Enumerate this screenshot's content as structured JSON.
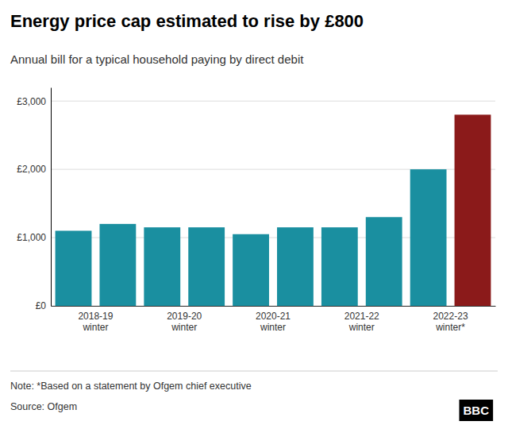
{
  "chart_data": {
    "type": "bar",
    "title": "Energy price cap estimated to rise by £800",
    "subtitle": "Annual bill for a typical household paying by direct debit",
    "note": "Note: *Based on a statement by Ofgem chief executive",
    "source": "Source: Ofgem",
    "logo": "BBC",
    "categories": [
      "2018-19\nwinter",
      null,
      "2019-20\nwinter",
      null,
      "2020-21\nwinter",
      null,
      "2021-22\nwinter",
      null,
      "2022-23\nwinter*",
      null
    ],
    "values": [
      1100,
      1200,
      1150,
      1150,
      1050,
      1150,
      1150,
      1300,
      2000,
      2800
    ],
    "colors": [
      "#1a8fa0",
      "#1a8fa0",
      "#1a8fa0",
      "#1a8fa0",
      "#1a8fa0",
      "#1a8fa0",
      "#1a8fa0",
      "#1a8fa0",
      "#1a8fa0",
      "#8b1a1a"
    ],
    "ylim": [
      0,
      3200
    ],
    "yticks": [
      {
        "value": 0,
        "label": "£0"
      },
      {
        "value": 1000,
        "label": "£1,000"
      },
      {
        "value": 2000,
        "label": "£2,000"
      },
      {
        "value": 3000,
        "label": "£3,000"
      }
    ],
    "grid": true
  }
}
